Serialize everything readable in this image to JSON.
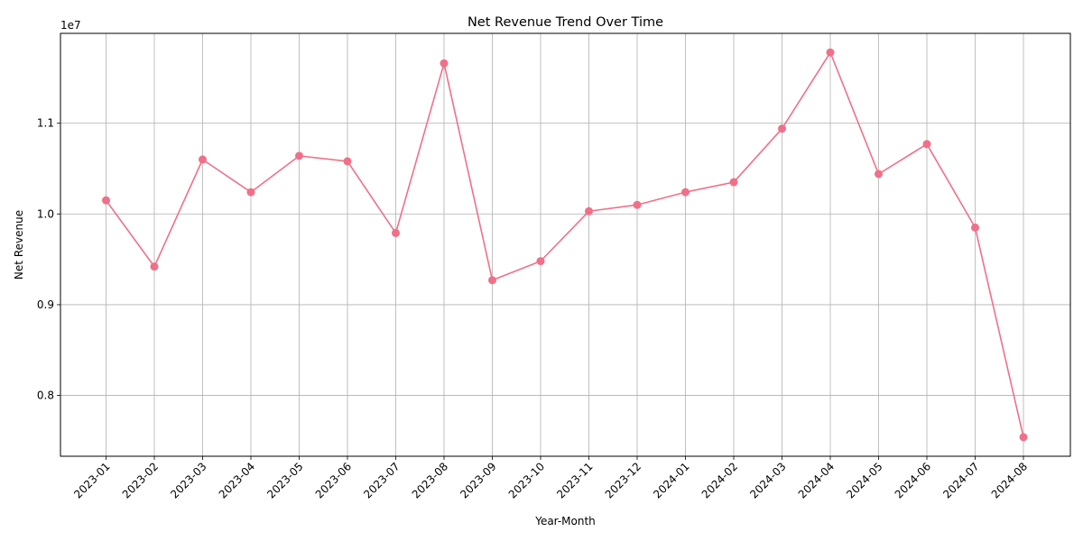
{
  "chart_data": {
    "type": "line",
    "title": "Net Revenue Trend Over Time",
    "xlabel": "Year-Month",
    "ylabel": "Net Revenue",
    "y_offset_label": "1e7",
    "y_scale": 10000000,
    "categories": [
      "2023-01",
      "2023-02",
      "2023-03",
      "2023-04",
      "2023-05",
      "2023-06",
      "2023-07",
      "2023-08",
      "2023-09",
      "2023-10",
      "2023-11",
      "2023-12",
      "2024-01",
      "2024-02",
      "2024-03",
      "2024-04",
      "2024-05",
      "2024-06",
      "2024-07",
      "2024-08"
    ],
    "series": [
      {
        "values": [
          10150000,
          9420000,
          10600000,
          10240000,
          10640000,
          10580000,
          9790000,
          11660000,
          9270000,
          9480000,
          10030000,
          10100000,
          10240000,
          10350000,
          10940000,
          11780000,
          10440000,
          10770000,
          9850000,
          7540000
        ],
        "color": "#f07089"
      }
    ],
    "yticks": [
      8000000,
      9000000,
      10000000,
      11000000
    ],
    "ytick_labels": [
      "0.8",
      "0.9",
      "1.0",
      "1.1"
    ],
    "ylim": [
      7330000,
      11990000
    ],
    "grid": true,
    "marker": "circle"
  }
}
